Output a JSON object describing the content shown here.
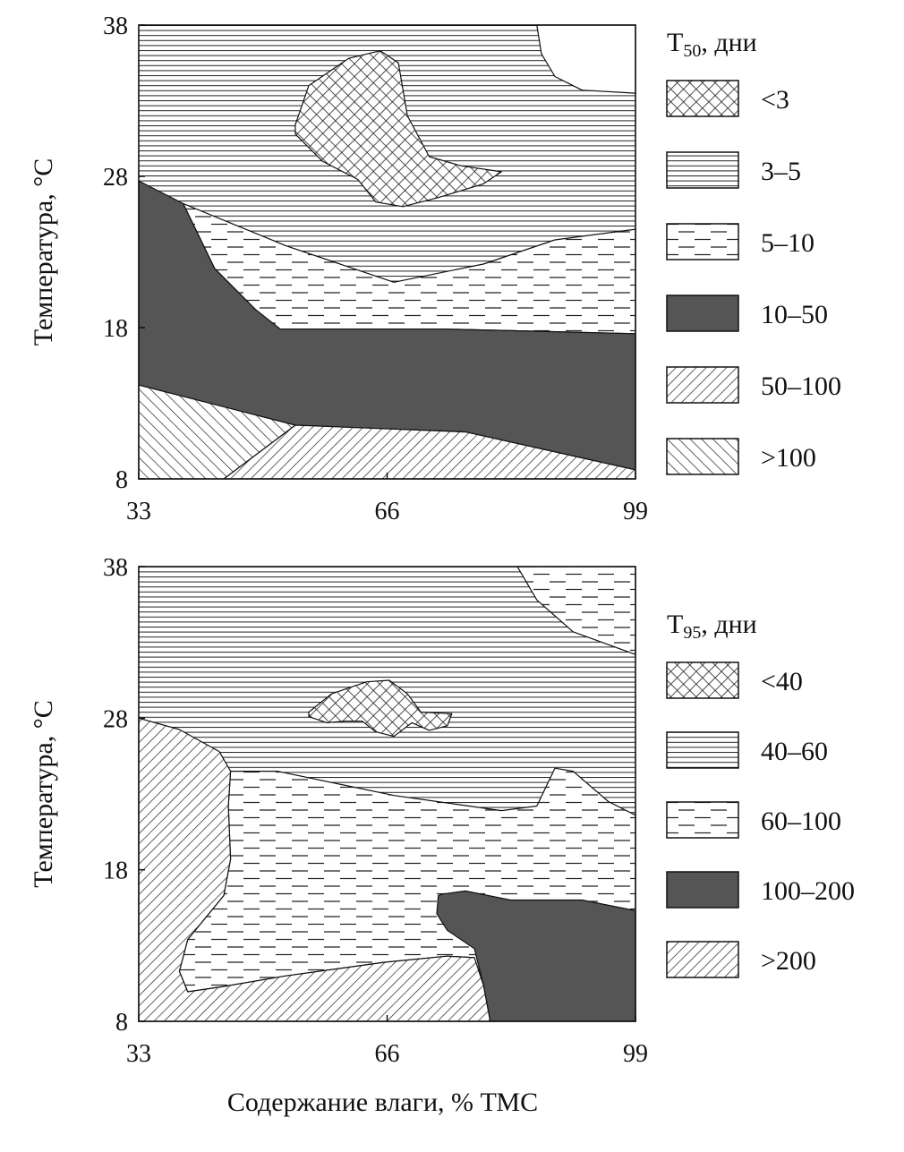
{
  "chart_data": [
    {
      "type": "contour",
      "title": "",
      "xlabel": "",
      "ylabel": "Температура, °С",
      "xlim": [
        33,
        99
      ],
      "ylim": [
        8,
        38
      ],
      "xticks": [
        "33",
        "66",
        "99"
      ],
      "yticks": [
        "8",
        "18",
        "28",
        "38"
      ],
      "legend_title": "T",
      "legend_sub": "50",
      "legend_suffix": ", дни",
      "legend_placement": "right",
      "background_class": "3–5",
      "legend": [
        {
          "label": "<3",
          "pattern": "cross"
        },
        {
          "label": "3–5",
          "pattern": "hlines"
        },
        {
          "label": "5–10",
          "pattern": "dashes"
        },
        {
          "label": "10–50",
          "pattern": "solid"
        },
        {
          "label": "50–100",
          "pattern": "diag"
        },
        {
          "label": ">100",
          "pattern": "bdiag"
        }
      ],
      "regions": [
        {
          "class": "none",
          "pattern": "white",
          "points": [
            [
              85.9,
              38
            ],
            [
              86.5,
              36.1
            ],
            [
              88.3,
              34.6
            ],
            [
              91.9,
              33.7
            ],
            [
              99,
              33.5
            ],
            [
              99,
              38
            ]
          ]
        },
        {
          "class": "5–10",
          "pattern": "dashes",
          "points": [
            [
              38.9,
              26.2
            ],
            [
              52.6,
              23.4
            ],
            [
              66.9,
              21.0
            ],
            [
              78.8,
              22.2
            ],
            [
              88.3,
              23.8
            ],
            [
              99,
              24.5
            ],
            [
              99,
              17.6
            ],
            [
              74.0,
              17.9
            ],
            [
              51.8,
              17.9
            ],
            [
              48.5,
              19.2
            ],
            [
              43.1,
              21.9
            ]
          ]
        },
        {
          "class": "10–50",
          "pattern": "solid",
          "points": [
            [
              33,
              27.7
            ],
            [
              38.9,
              26.2
            ],
            [
              43.1,
              21.9
            ],
            [
              48.5,
              19.2
            ],
            [
              51.8,
              17.9
            ],
            [
              74.0,
              17.9
            ],
            [
              99,
              17.6
            ],
            [
              99,
              8.6
            ],
            [
              76.4,
              11.1
            ],
            [
              53.8,
              11.55
            ],
            [
              33,
              14.2
            ]
          ]
        },
        {
          "class": "50–100",
          "pattern": "diag",
          "points": [
            [
              44.3,
              8
            ],
            [
              53.8,
              11.55
            ],
            [
              76.4,
              11.1
            ],
            [
              99,
              8.6
            ],
            [
              99,
              8
            ]
          ]
        },
        {
          "class": ">100",
          "pattern": "bdiag",
          "points": [
            [
              33,
              14.2
            ],
            [
              53.8,
              11.55
            ],
            [
              44.3,
              8
            ],
            [
              33,
              8
            ]
          ]
        },
        {
          "class": "<3",
          "pattern": "cross",
          "points": [
            [
              53.8,
              31.4
            ],
            [
              55.6,
              34.0
            ],
            [
              60.9,
              35.8
            ],
            [
              65.1,
              36.3
            ],
            [
              67.5,
              35.5
            ],
            [
              68.7,
              32.0
            ],
            [
              71.6,
              29.3
            ],
            [
              75.8,
              28.7
            ],
            [
              81.2,
              28.3
            ],
            [
              78.8,
              27.5
            ],
            [
              72.8,
              26.6
            ],
            [
              68.1,
              26.0
            ],
            [
              64.5,
              26.3
            ],
            [
              62.1,
              27.8
            ],
            [
              57.4,
              29.0
            ],
            [
              53.8,
              30.8
            ]
          ]
        }
      ]
    },
    {
      "type": "contour",
      "title": "",
      "xlabel": "Содержание влаги, % ТМС",
      "ylabel": "Температура, °С",
      "xlim": [
        33,
        99
      ],
      "ylim": [
        8,
        38
      ],
      "xticks": [
        "33",
        "66",
        "99"
      ],
      "yticks": [
        "8",
        "18",
        "28",
        "38"
      ],
      "legend_title": "T",
      "legend_sub": "95",
      "legend_suffix": ", дни",
      "legend_placement": "right",
      "background_class": "40–60",
      "legend": [
        {
          "label": "<40",
          "pattern": "cross"
        },
        {
          "label": "40–60",
          "pattern": "hlines"
        },
        {
          "label": "60–100",
          "pattern": "dashes"
        },
        {
          "label": "100–200",
          "pattern": "solid"
        },
        {
          "label": ">200",
          "pattern": "diag"
        }
      ],
      "regions": [
        {
          "class": "60–100",
          "pattern": "dashes",
          "points": [
            [
              83.3,
              38
            ],
            [
              85.9,
              35.8
            ],
            [
              90.7,
              33.7
            ],
            [
              99,
              32.2
            ],
            [
              99,
              38
            ]
          ]
        },
        {
          "class": "60–100",
          "pattern": "dashes",
          "points": [
            [
              45.2,
              24.5
            ],
            [
              51.4,
              24.5
            ],
            [
              66.9,
              22.9
            ],
            [
              81.2,
              21.9
            ],
            [
              85.9,
              22.2
            ],
            [
              88.3,
              24.7
            ],
            [
              90.7,
              24.5
            ],
            [
              95.4,
              22.5
            ],
            [
              99,
              21.6
            ],
            [
              99,
              8
            ],
            [
              79.7,
              8
            ],
            [
              78.8,
              10.4
            ],
            [
              77.6,
              12.2
            ],
            [
              74.0,
              12.3
            ],
            [
              65.7,
              11.9
            ],
            [
              52.6,
              11.0
            ],
            [
              44.3,
              10.3
            ],
            [
              39.5,
              9.95
            ],
            [
              38.4,
              11.3
            ],
            [
              39.5,
              13.4
            ],
            [
              44.3,
              16.3
            ],
            [
              45.2,
              18.7
            ],
            [
              44.9,
              22.2
            ]
          ]
        },
        {
          "class": "100–200",
          "pattern": "solid",
          "points": [
            [
              72.6,
              15.1
            ],
            [
              72.8,
              16.3
            ],
            [
              73.4,
              16.4
            ],
            [
              76.4,
              16.6
            ],
            [
              82.4,
              16.0
            ],
            [
              91.9,
              16.0
            ],
            [
              99,
              15.3
            ],
            [
              99,
              8
            ],
            [
              79.7,
              8
            ],
            [
              78.8,
              10.4
            ],
            [
              77.6,
              12.8
            ],
            [
              74.0,
              14.0
            ]
          ]
        },
        {
          "class": ">200",
          "pattern": "diag",
          "points": [
            [
              33,
              28.0
            ],
            [
              38.4,
              27.25
            ],
            [
              43.7,
              25.8
            ],
            [
              45.2,
              24.5
            ],
            [
              44.9,
              22.2
            ],
            [
              45.2,
              18.7
            ],
            [
              44.3,
              16.3
            ],
            [
              39.5,
              13.4
            ],
            [
              38.4,
              11.3
            ],
            [
              39.5,
              9.95
            ],
            [
              44.3,
              10.3
            ],
            [
              52.6,
              11.0
            ],
            [
              65.7,
              11.9
            ],
            [
              74.0,
              12.3
            ],
            [
              77.6,
              12.2
            ],
            [
              78.8,
              10.4
            ],
            [
              79.7,
              8
            ],
            [
              33,
              8
            ]
          ]
        },
        {
          "class": "<40",
          "pattern": "cross",
          "points": [
            [
              55.6,
              28.4
            ],
            [
              58.6,
              29.6
            ],
            [
              63.3,
              30.4
            ],
            [
              66.3,
              30.5
            ],
            [
              68.7,
              29.6
            ],
            [
              70.5,
              28.4
            ],
            [
              74.6,
              28.3
            ],
            [
              74.0,
              27.5
            ],
            [
              71.6,
              27.2
            ],
            [
              69.3,
              27.7
            ],
            [
              66.9,
              26.8
            ],
            [
              64.5,
              27.1
            ],
            [
              62.7,
              27.8
            ],
            [
              60.3,
              27.8
            ],
            [
              58.0,
              27.7
            ],
            [
              55.6,
              28.1
            ]
          ]
        }
      ]
    }
  ],
  "colors": {
    "solid": "#555555",
    "line": "#111111"
  }
}
